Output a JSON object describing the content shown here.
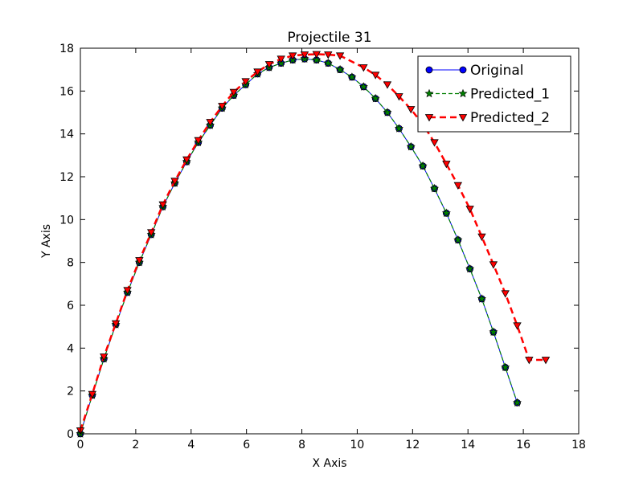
{
  "chart_data": {
    "type": "line",
    "title": "Projectile 31",
    "xlabel": "X Axis",
    "ylabel": "Y Axis",
    "xlim": [
      0,
      18
    ],
    "ylim": [
      0,
      18
    ],
    "xticks": [
      "0",
      "2",
      "4",
      "6",
      "8",
      "10",
      "12",
      "14",
      "16",
      "18"
    ],
    "yticks": [
      "0",
      "2",
      "4",
      "6",
      "8",
      "10",
      "12",
      "14",
      "16",
      "18"
    ],
    "grid": false,
    "legend_position": "top-right",
    "series": [
      {
        "name": "Original",
        "color": "#0000ff",
        "marker": "circle",
        "line": "solid",
        "x": [
          0,
          0.43,
          0.85,
          1.28,
          1.7,
          2.13,
          2.56,
          2.98,
          3.41,
          3.84,
          4.26,
          4.69,
          5.12,
          5.54,
          5.97,
          6.4,
          6.82,
          7.25,
          7.67,
          8.1,
          8.53,
          8.95,
          9.38,
          9.81,
          10.23,
          10.66,
          11.09,
          11.51,
          11.94,
          12.37,
          12.79,
          13.22,
          13.64,
          14.07,
          14.5,
          14.92,
          15.35,
          15.78
        ],
        "y": [
          0,
          1.8,
          3.5,
          5.1,
          6.6,
          8.0,
          9.3,
          10.6,
          11.7,
          12.7,
          13.6,
          14.4,
          15.2,
          15.8,
          16.3,
          16.8,
          17.1,
          17.3,
          17.45,
          17.5,
          17.45,
          17.3,
          17.0,
          16.65,
          16.2,
          15.65,
          15.0,
          14.25,
          13.4,
          12.5,
          11.45,
          10.3,
          9.05,
          7.7,
          6.3,
          4.75,
          3.1,
          1.45
        ]
      },
      {
        "name": "Predicted_1",
        "color": "#007f00",
        "marker": "star",
        "line": "dashed",
        "x": [
          0,
          0.43,
          0.85,
          1.28,
          1.7,
          2.13,
          2.56,
          2.98,
          3.41,
          3.84,
          4.26,
          4.69,
          5.12,
          5.54,
          5.97,
          6.4,
          6.82,
          7.25,
          7.67,
          8.1,
          8.53,
          8.95,
          9.38,
          9.81,
          10.23,
          10.66,
          11.09,
          11.51,
          11.94,
          12.37,
          12.79,
          13.22,
          13.64,
          14.07,
          14.5,
          14.92,
          15.35,
          15.78
        ],
        "y": [
          0,
          1.8,
          3.5,
          5.1,
          6.6,
          8.0,
          9.3,
          10.6,
          11.7,
          12.7,
          13.6,
          14.4,
          15.2,
          15.8,
          16.3,
          16.8,
          17.1,
          17.3,
          17.45,
          17.5,
          17.45,
          17.3,
          17.0,
          16.65,
          16.2,
          15.65,
          15.0,
          14.25,
          13.4,
          12.5,
          11.45,
          10.3,
          9.05,
          7.7,
          6.3,
          4.75,
          3.1,
          1.45
        ]
      },
      {
        "name": "Predicted_2",
        "color": "#ff0000",
        "marker": "triangle-down",
        "line": "dashed",
        "x": [
          0,
          0.43,
          0.85,
          1.28,
          1.7,
          2.13,
          2.56,
          2.98,
          3.41,
          3.84,
          4.26,
          4.69,
          5.12,
          5.54,
          5.97,
          6.4,
          6.82,
          7.25,
          7.67,
          8.1,
          8.53,
          8.95,
          9.38,
          10.23,
          10.66,
          11.09,
          11.51,
          11.94,
          12.37,
          12.79,
          13.22,
          13.64,
          14.07,
          14.5,
          14.92,
          15.35,
          15.78,
          16.21,
          16.81
        ],
        "y": [
          0.15,
          1.85,
          3.6,
          5.15,
          6.7,
          8.1,
          9.4,
          10.7,
          11.8,
          12.8,
          13.7,
          14.55,
          15.3,
          15.95,
          16.45,
          16.9,
          17.25,
          17.5,
          17.65,
          17.7,
          17.72,
          17.7,
          17.65,
          17.1,
          16.75,
          16.3,
          15.75,
          15.15,
          14.45,
          13.6,
          12.6,
          11.6,
          10.5,
          9.2,
          7.9,
          6.55,
          5.05,
          3.45,
          3.45
        ]
      }
    ]
  }
}
